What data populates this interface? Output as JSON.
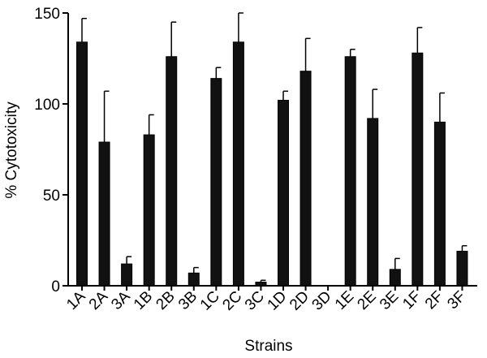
{
  "chart_data": {
    "type": "bar",
    "title": "",
    "xlabel": "Strains",
    "ylabel": "% Cytotoxicity",
    "ylim": [
      0,
      150
    ],
    "yticks": [
      0,
      50,
      100,
      150
    ],
    "categories": [
      "1A",
      "2A",
      "3A",
      "1B",
      "2B",
      "3B",
      "1C",
      "2C",
      "3C",
      "1D",
      "2D",
      "3D",
      "1E",
      "2E",
      "3E",
      "1F",
      "2F",
      "3F"
    ],
    "values": [
      134,
      79,
      12,
      83,
      126,
      7,
      114,
      134,
      2,
      102,
      118,
      0,
      126,
      92,
      9,
      128,
      90,
      19
    ],
    "errors": [
      13,
      28,
      4,
      11,
      19,
      3,
      6,
      16,
      1,
      5,
      18,
      0,
      4,
      16,
      6,
      14,
      16,
      3
    ],
    "grid": false,
    "legend": "none",
    "bar_color": "#111111"
  }
}
